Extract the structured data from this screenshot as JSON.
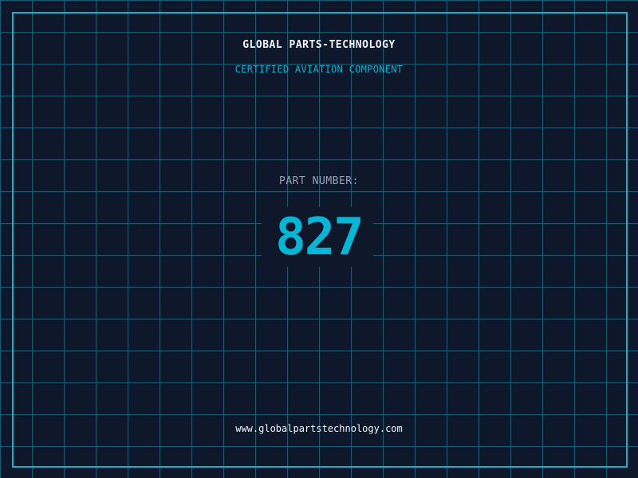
{
  "colors": {
    "background": "#0f172a",
    "accent": "#06b6d4",
    "grid": "#155e75"
  },
  "header": {
    "title": "GLOBAL PARTS-TECHNOLOGY",
    "subtitle": "CERTIFIED AVIATION COMPONENT"
  },
  "part": {
    "label": "PART NUMBER:",
    "number": "827"
  },
  "footer": {
    "url": "www.globalpartstechnology.com"
  }
}
